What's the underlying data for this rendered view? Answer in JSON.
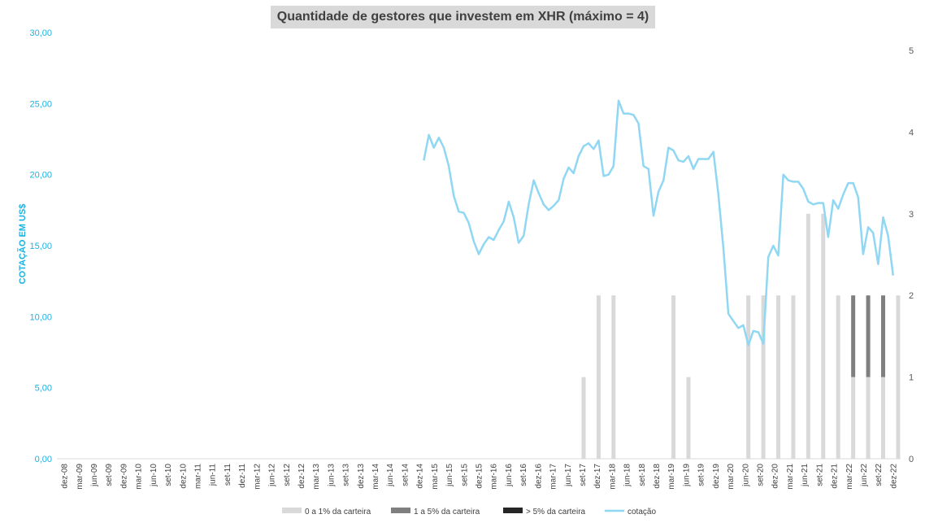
{
  "chart_data": {
    "type": "bar",
    "title": "Quantidade de gestores que investem em XHR (máximo = 4)",
    "ylabel": "COTAÇÃO EM US$",
    "ylabel_right": "",
    "ylim_left": [
      0,
      30
    ],
    "ylim_right": [
      0,
      5
    ],
    "yticks_left": [
      "0,00",
      "5,00",
      "10,00",
      "15,00",
      "20,00",
      "25,00",
      "30,00"
    ],
    "yticks_right": [
      "0",
      "1",
      "2",
      "3",
      "4",
      "5"
    ],
    "xtick_labels": [
      "dez-08",
      "mar-09",
      "jun-09",
      "set-09",
      "dez-09",
      "mar-10",
      "jun-10",
      "set-10",
      "dez-10",
      "mar-11",
      "jun-11",
      "set-11",
      "dez-11",
      "mar-12",
      "jun-12",
      "set-12",
      "dez-12",
      "mar-13",
      "jun-13",
      "set-13",
      "dez-13",
      "mar-14",
      "jun-14",
      "set-14",
      "dez-14",
      "mar-15",
      "jun-15",
      "set-15",
      "dez-15",
      "mar-16",
      "jun-16",
      "set-16",
      "dez-16",
      "mar-17",
      "jun-17",
      "set-17",
      "dez-17",
      "mar-18",
      "jun-18",
      "set-18",
      "dez-18",
      "mar-19",
      "jun-19",
      "set-19",
      "dez-19",
      "mar-20",
      "jun-20",
      "set-20",
      "dez-20",
      "mar-21",
      "jun-21",
      "set-21",
      "dez-21",
      "mar-22",
      "jun-22",
      "set-22",
      "dez-22"
    ],
    "grid": false,
    "legend_position": "bottom",
    "legend": [
      {
        "label": "0 a 1% da carteira",
        "color": "#d9d9d9"
      },
      {
        "label": "1 a 5% da carteira",
        "color": "#7f7f7f"
      },
      {
        "label": "> 5% da carteira",
        "color": "#262626"
      },
      {
        "label": "cotação",
        "color": "#8fd7f2"
      }
    ],
    "bars": {
      "quarters": [
        "set-17",
        "dez-17",
        "mar-18",
        "mar-19",
        "jun-19",
        "jun-20",
        "set-20",
        "dez-20",
        "mar-21",
        "jun-21",
        "set-21",
        "dez-21",
        "mar-22",
        "jun-22",
        "set-22",
        "dez-22"
      ],
      "series": [
        {
          "name": "0 a 1% da carteira",
          "values": [
            1,
            2,
            2,
            2,
            1,
            2,
            2,
            2,
            2,
            3,
            3,
            2,
            1,
            1,
            1,
            2
          ]
        },
        {
          "name": "1 a 5% da carteira",
          "values": [
            0,
            0,
            0,
            0,
            0,
            0,
            0,
            0,
            0,
            0,
            0,
            0,
            1,
            1,
            1,
            0
          ]
        },
        {
          "name": "> 5% da carteira",
          "values": [
            0,
            0,
            0,
            0,
            0,
            0,
            0,
            0,
            0,
            0,
            0,
            0,
            0,
            0,
            0,
            0
          ]
        }
      ]
    },
    "line": {
      "name": "cotação",
      "start_month": "jan-15",
      "values": [
        21.0,
        22.8,
        21.9,
        22.6,
        21.9,
        20.6,
        18.5,
        17.4,
        17.3,
        16.6,
        15.3,
        14.4,
        15.1,
        15.6,
        15.4,
        16.1,
        16.7,
        18.1,
        17.0,
        15.2,
        15.7,
        17.9,
        19.6,
        18.7,
        17.9,
        17.5,
        17.8,
        18.2,
        19.7,
        20.5,
        20.1,
        21.3,
        22.0,
        22.2,
        21.8,
        22.4,
        19.9,
        20.0,
        20.6,
        25.2,
        24.3,
        24.3,
        24.2,
        23.6,
        20.6,
        20.4,
        17.1,
        18.8,
        19.6,
        21.9,
        21.7,
        21.0,
        20.9,
        21.3,
        20.4,
        21.1,
        21.1,
        21.1,
        21.6,
        18.6,
        14.8,
        10.2,
        9.7,
        9.2,
        9.4,
        8.0,
        9.0,
        8.9,
        8.1,
        14.2,
        15.0,
        14.3,
        20.0,
        19.6,
        19.5,
        19.5,
        19.0,
        18.1,
        17.9,
        18.0,
        18.0,
        15.6,
        18.2,
        17.6,
        18.6,
        19.4,
        19.4,
        18.4,
        14.4,
        16.3,
        15.9,
        13.7,
        17.0,
        15.7,
        12.9
      ]
    }
  }
}
